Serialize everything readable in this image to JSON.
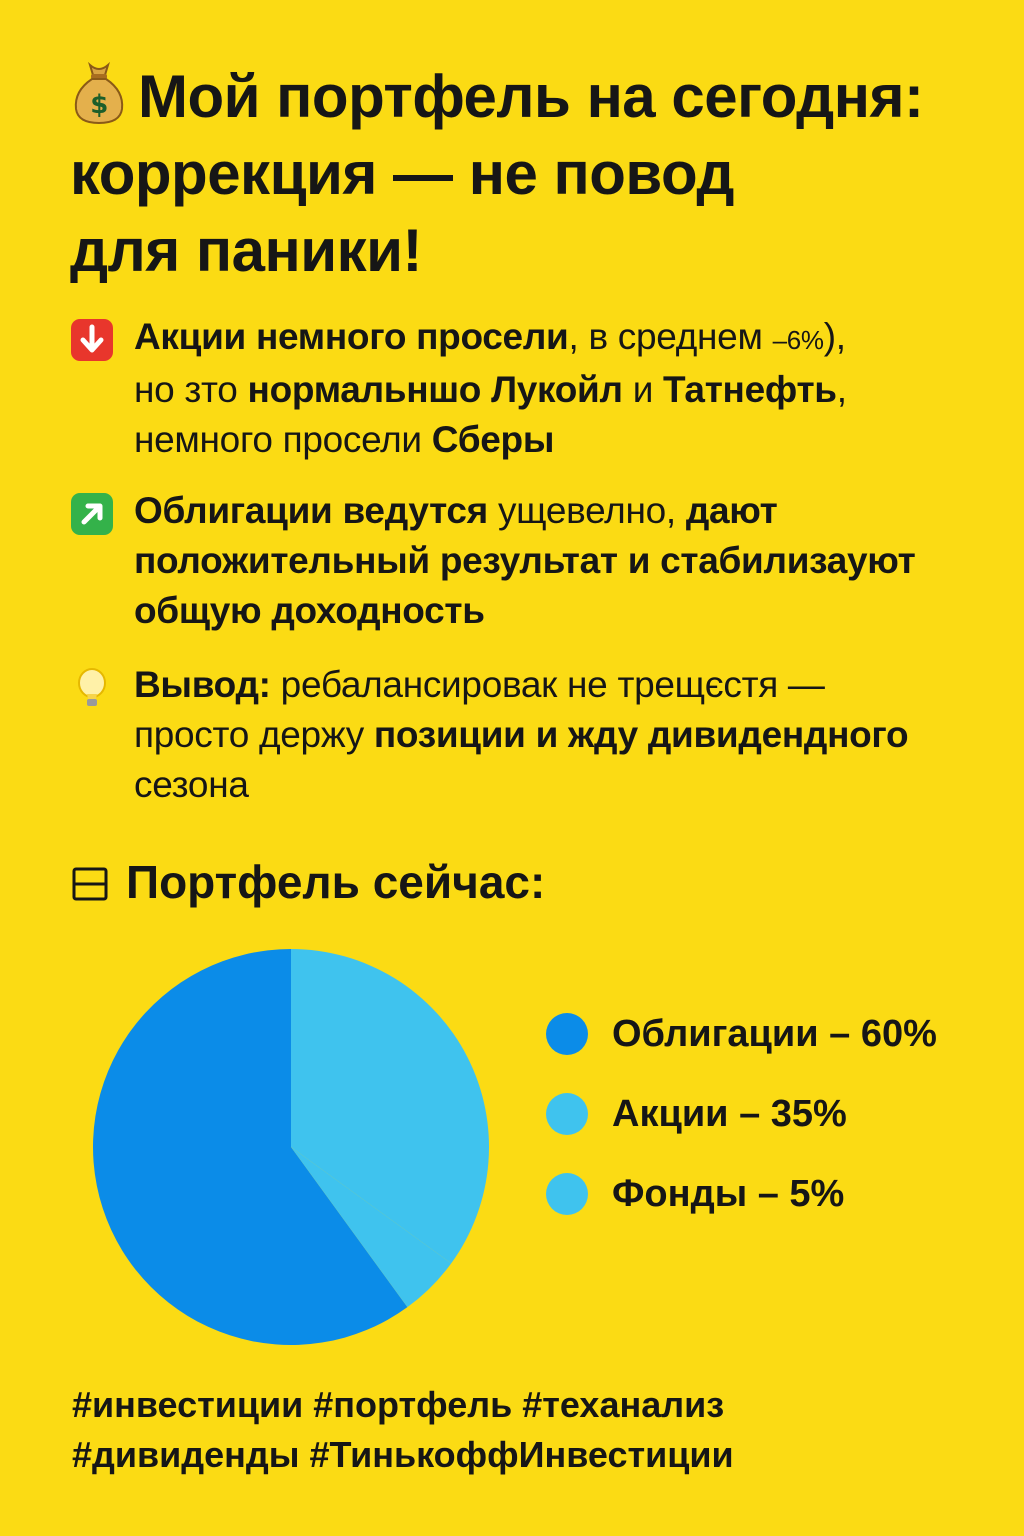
{
  "headline": {
    "icon": "money-bag-icon",
    "line1": "Мой портфель на сегодня:",
    "line2": "коррекция — не повод",
    "line3": "для паники!"
  },
  "bullets": {
    "stocks": {
      "icon": "down-arrow-red-icon",
      "icon_color": "#E8362C",
      "bold1": "Акции немного просели",
      "text1": ", в среднем ",
      "small": "–6%",
      "text2": "),",
      "text3": "но зто ",
      "bold2": "нормальншо Лукойл",
      "text4": " и ",
      "bold3": "Татнефть",
      "text5": ",",
      "text6": "немного просели ",
      "bold4": "Сберы"
    },
    "bonds": {
      "icon": "up-right-arrow-green-icon",
      "icon_color": "#34B24A",
      "bold1": "Облигации ведутся",
      "text1": " ущевелно, ",
      "bold2": "дают",
      "bold3": "положительный результат и стабилизауют",
      "bold4": "общую доходность"
    },
    "conclusion": {
      "icon": "light-bulb-icon",
      "bold1": "Вывод:",
      "text1": " ребалансировак не трещєстя —",
      "text2": "просто ",
      "text3": "держу",
      "bold2": " позиции и жду дивидендного",
      "text4": "сезона"
    }
  },
  "section": {
    "icon": "table-icon",
    "title": "Портфель сейчас:"
  },
  "chart_data": {
    "type": "pie",
    "slices": [
      {
        "label": "Облигации – 60%",
        "value": 60,
        "color": "#0B8CE8"
      },
      {
        "label": "Акции – 35%",
        "value": 35,
        "color": "#3FC3EE"
      },
      {
        "label": "Фонды – 5%",
        "value": 5,
        "color": "#3FC3EE"
      }
    ],
    "legend_placement": "right"
  },
  "hashtags": {
    "line1": "#инвестиции #портфель #теханализ",
    "line2": "#дивиденды #ТинькоффИнвестиции"
  },
  "colors": {
    "background": "#FBDB14",
    "text": "#161616",
    "legend_dot_bonds": "#0B8CE8",
    "legend_dot_stocks": "#3FC3EE",
    "legend_dot_funds": "#3FC3EE"
  }
}
